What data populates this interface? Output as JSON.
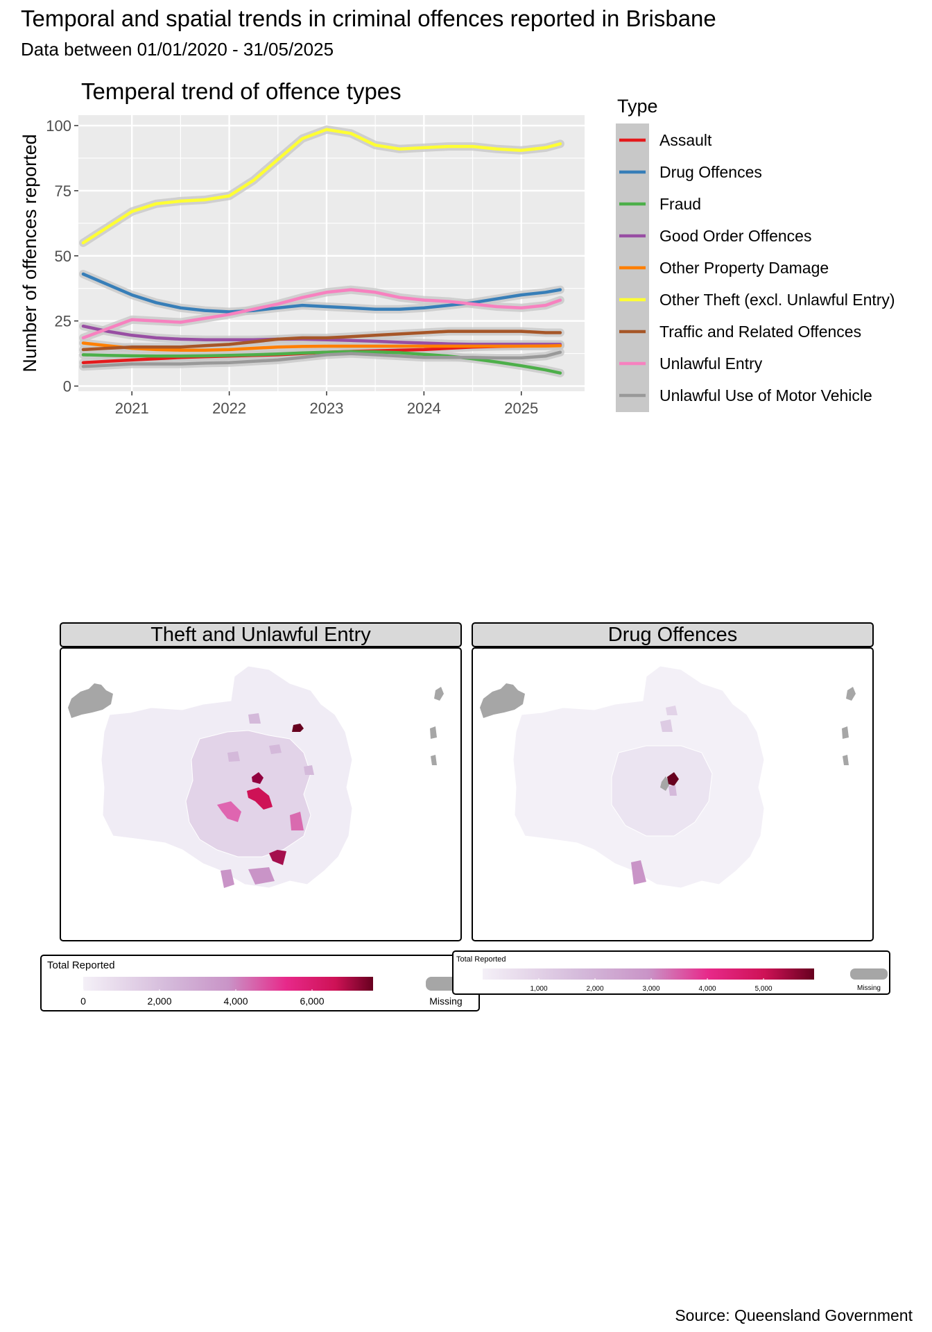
{
  "header": {
    "title": "Temporal and spatial trends in criminal offences reported in Brisbane",
    "subtitle": "Data between 01/01/2020 - 31/05/2025"
  },
  "chart_data": {
    "type": "line",
    "title": "Temperal trend of offence types",
    "xlabel": "",
    "ylabel": "Number of offences reported",
    "xlim": [
      2020.45,
      2025.65
    ],
    "ylim": [
      -2,
      104
    ],
    "x_ticks": [
      2021,
      2022,
      2023,
      2024,
      2025
    ],
    "y_ticks": [
      0,
      25,
      50,
      75,
      100
    ],
    "grid": true,
    "legend_title": "Type",
    "legend_position": "right",
    "x": [
      2020.5,
      2020.75,
      2021.0,
      2021.25,
      2021.5,
      2021.75,
      2022.0,
      2022.25,
      2022.5,
      2022.75,
      2023.0,
      2023.25,
      2023.5,
      2023.75,
      2024.0,
      2024.25,
      2024.5,
      2024.75,
      2025.0,
      2025.25,
      2025.4
    ],
    "series": [
      {
        "name": "Assault",
        "color": "#e41a1c",
        "values": [
          9,
          9.5,
          10,
          10.5,
          11,
          11.3,
          11.5,
          11.8,
          12,
          12.5,
          13,
          13.3,
          13.5,
          13.8,
          14,
          14.5,
          15,
          15.2,
          15.4,
          15.5,
          15.6
        ]
      },
      {
        "name": "Drug Offences",
        "color": "#377eb8",
        "values": [
          43,
          39,
          35,
          32,
          30,
          29,
          28.5,
          29,
          30,
          31,
          30.5,
          30,
          29.5,
          29.5,
          30,
          31,
          32,
          33.5,
          35,
          36,
          37
        ]
      },
      {
        "name": "Fraud",
        "color": "#4daf4a",
        "values": [
          12,
          11.8,
          11.6,
          11.5,
          11.5,
          11.6,
          11.8,
          12,
          12.3,
          12.7,
          13,
          13.2,
          13.1,
          12.8,
          12.2,
          11.5,
          10.5,
          9.2,
          7.8,
          6.2,
          5
        ]
      },
      {
        "name": "Good Order Offences",
        "color": "#984ea3",
        "values": [
          23,
          21,
          19.5,
          18.5,
          18,
          17.8,
          17.8,
          17.8,
          18,
          18,
          17.8,
          17.5,
          17.2,
          16.8,
          16.5,
          16.2,
          16,
          16,
          16,
          16,
          16
        ]
      },
      {
        "name": "Other Property Damage",
        "color": "#ff7f00",
        "values": [
          16.5,
          15.5,
          14.5,
          14,
          13.8,
          13.8,
          14,
          14.5,
          15,
          15.2,
          15.3,
          15.3,
          15.3,
          15.3,
          15.3,
          15.3,
          15.3,
          15.3,
          15.3,
          15.4,
          15.5
        ]
      },
      {
        "name": "Other Theft (excl. Unlawful Entry)",
        "color": "#ffff33",
        "values": [
          55,
          61,
          67,
          70,
          71,
          71.5,
          73,
          79,
          87,
          95,
          98.5,
          97,
          92.5,
          91,
          91.5,
          92,
          92,
          91,
          90.5,
          91.5,
          93
        ]
      },
      {
        "name": "Traffic and Related Offences",
        "color": "#a65628",
        "values": [
          14,
          14.5,
          15,
          15,
          15,
          15.5,
          16,
          17,
          18,
          18.5,
          18.5,
          19,
          19.5,
          20,
          20.5,
          21,
          21,
          21,
          21,
          20.5,
          20.5
        ]
      },
      {
        "name": "Unlawful Entry",
        "color": "#f781bf",
        "values": [
          18.5,
          22,
          25.5,
          25,
          24.5,
          26,
          27.5,
          29.5,
          31.5,
          34,
          36,
          37,
          36,
          34,
          33,
          32.5,
          31.5,
          30.5,
          30,
          31,
          33
        ]
      },
      {
        "name": "Unlawful Use of Motor Vehicle",
        "color": "#999999",
        "values": [
          7.5,
          8,
          8.5,
          8.5,
          8.5,
          8.8,
          9,
          9.5,
          10,
          11,
          12,
          12.5,
          12,
          11.5,
          11,
          11,
          11,
          10.8,
          10.8,
          11.5,
          13
        ]
      }
    ]
  },
  "maps": {
    "panels": [
      {
        "title": "Theft and Unlawful Entry",
        "legend": {
          "title": "Total Reported",
          "ticks": [
            "0",
            "2,000",
            "4,000",
            "6,000"
          ],
          "missing_label": "Missing",
          "min": 0,
          "max": 7600,
          "tick_values": [
            0,
            2000,
            4000,
            6000
          ]
        }
      },
      {
        "title": "Drug Offences",
        "legend": {
          "title": "Total Reported",
          "ticks": [
            "1,000",
            "2,000",
            "3,000",
            "4,000",
            "5,000"
          ],
          "missing_label": "Missing",
          "min": 0,
          "max": 5900,
          "tick_values": [
            1000,
            2000,
            3000,
            4000,
            5000
          ]
        }
      }
    ],
    "scale_colors": [
      "#f4f0f7",
      "#d4b9da",
      "#c994c7",
      "#df65b0",
      "#e7298a",
      "#ce1256",
      "#67001f"
    ],
    "missing_color": "#a6a6a6"
  },
  "footer": {
    "source": "Source: Queensland Government"
  }
}
